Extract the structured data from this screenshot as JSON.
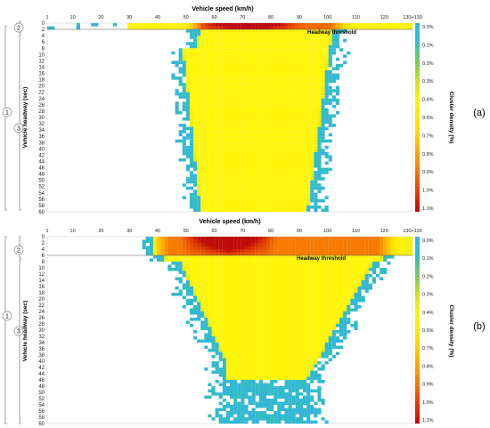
{
  "chart_data": [
    {
      "type": "heatmap",
      "panel_label": "(a)",
      "xlabel": "Vehicle speed (km/h)",
      "ylabel": "Vehicle headway (sec)",
      "colorbar_label": "Cluster density (%)",
      "x_ticks": [
        "1",
        "10",
        "20",
        "30",
        "40",
        "50",
        "60",
        "70",
        "80",
        "90",
        "100",
        "110",
        "120",
        "130+130"
      ],
      "y_ticks": [
        "0",
        "2",
        "4",
        "6",
        "8",
        "10",
        "12",
        "14",
        "16",
        "18",
        "20",
        "22",
        "24",
        "26",
        "28",
        "30",
        "32",
        "34",
        "36",
        "38",
        "40",
        "42",
        "44",
        "46",
        "48",
        "50",
        "52",
        "54",
        "56",
        "58",
        "60"
      ],
      "colorbar_ticks": [
        "0.0%",
        "0.1%",
        "0.2%",
        "0.3%",
        "0.4%",
        "0.6%",
        "0.7%",
        "0.8%",
        "0.9%",
        "1.0%",
        "1.1%"
      ],
      "annotation": "Headway threshold",
      "threshold_headway": 2,
      "xlim": [
        1,
        130
      ],
      "ylim": [
        0,
        60
      ],
      "color_range": [
        0.0,
        1.1
      ],
      "brackets": [
        "1",
        "2",
        "3"
      ],
      "density_peak": {
        "speed": 72,
        "headway": 1
      }
    },
    {
      "type": "heatmap",
      "panel_label": "(b)",
      "xlabel": "Vehicle speed (km/h)",
      "ylabel": "Vehicle headway (sec)",
      "colorbar_label": "Cluster density (%)",
      "x_ticks": [
        "1",
        "10",
        "20",
        "30",
        "40",
        "50",
        "60",
        "70",
        "80",
        "90",
        "100",
        "110",
        "120",
        "130+130"
      ],
      "y_ticks": [
        "0",
        "2",
        "4",
        "6",
        "8",
        "10",
        "12",
        "14",
        "16",
        "18",
        "20",
        "22",
        "24",
        "26",
        "28",
        "30",
        "32",
        "34",
        "36",
        "38",
        "40",
        "42",
        "44",
        "46",
        "48",
        "50",
        "52",
        "54",
        "56",
        "58",
        "60"
      ],
      "colorbar_ticks": [
        "0.0%",
        "0.1%",
        "0.2%",
        "0.3%",
        "0.4%",
        "0.6%",
        "0.7%",
        "0.8%",
        "0.9%",
        "1.0%",
        "1.1%"
      ],
      "annotation": "Headway threshold",
      "threshold_headway": 6,
      "xlim": [
        1,
        130
      ],
      "ylim": [
        0,
        60
      ],
      "color_range": [
        0.0,
        1.1
      ],
      "brackets": [
        "1",
        "2",
        "3"
      ],
      "density_peak": {
        "speed": 65,
        "headway": 1
      }
    }
  ]
}
